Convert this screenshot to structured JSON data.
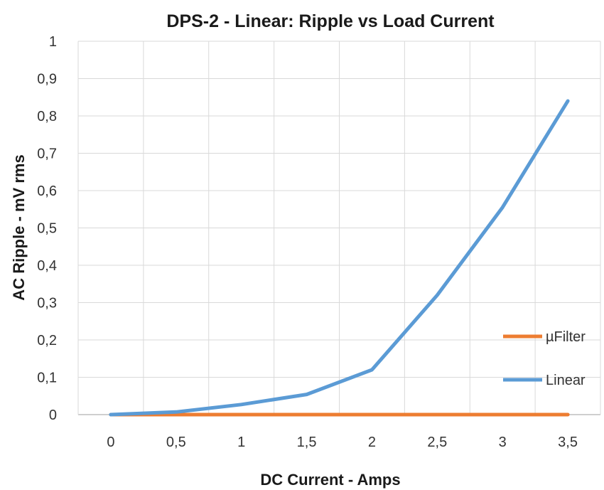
{
  "chart_data": {
    "type": "line",
    "title": "DPS-2 - Linear: Ripple vs Load Current",
    "xlabel": "DC Current - Amps",
    "ylabel": "AC Ripple - mV rms",
    "categories": [
      "0",
      "0,5",
      "1",
      "1,5",
      "2",
      "2,5",
      "3",
      "3,5"
    ],
    "x": [
      0,
      0.5,
      1,
      1.5,
      2,
      2.5,
      3,
      3.5
    ],
    "ylim": [
      0,
      1
    ],
    "yticks": [
      "0",
      "0,1",
      "0,2",
      "0,3",
      "0,4",
      "0,5",
      "0,6",
      "0,7",
      "0,8",
      "0,9",
      "1"
    ],
    "grid": true,
    "legend_position": "right",
    "series": [
      {
        "name": "µFilter",
        "color": "#ed7d31",
        "values": [
          0.0,
          0.0,
          0.0,
          0.0,
          0.0,
          0.0,
          0.0,
          0.0
        ]
      },
      {
        "name": "Linear",
        "color": "#5b9bd5",
        "values": [
          0.0,
          0.007,
          0.027,
          0.054,
          0.12,
          0.32,
          0.555,
          0.84
        ]
      }
    ]
  }
}
